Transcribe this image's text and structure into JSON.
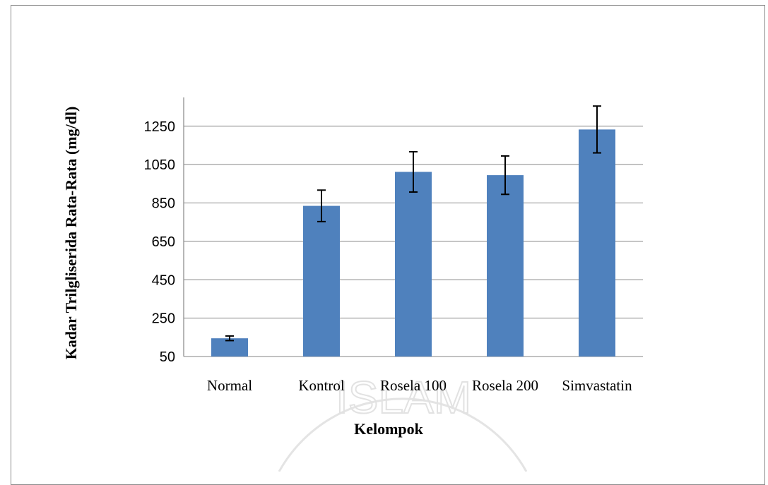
{
  "chart_data": {
    "type": "bar",
    "title": "",
    "xlabel": "Kelompok",
    "ylabel": "Kadar Trilgliserida Rata-Rata (mg/dl)",
    "categories": [
      "Normal",
      "Kontrol",
      "Rosela 100",
      "Rosela 200",
      "Simvastatin"
    ],
    "values": [
      145,
      835,
      1012,
      995,
      1233
    ],
    "error": [
      12,
      82,
      105,
      100,
      122
    ],
    "ylim": [
      50,
      1400
    ],
    "yticks": [
      50,
      250,
      450,
      650,
      850,
      1050,
      1250
    ],
    "grid": true,
    "bar_color": "#4f81bd",
    "error_color": "#000000"
  },
  "watermark": {
    "text": "ISLAM"
  }
}
